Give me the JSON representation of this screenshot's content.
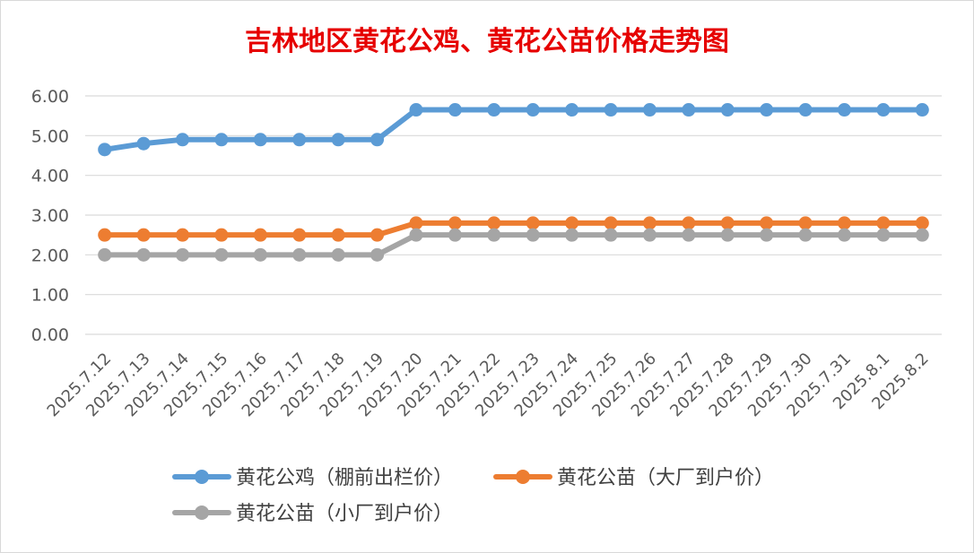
{
  "chart_data": {
    "type": "line",
    "title": "吉林地区黄花公鸡、黄花公苗价格走势图",
    "xlabel": "",
    "ylabel": "",
    "ylim": [
      0,
      6
    ],
    "yticks": [
      "0.00",
      "1.00",
      "2.00",
      "3.00",
      "4.00",
      "5.00",
      "6.00"
    ],
    "grid": true,
    "legend_position": "bottom",
    "categories": [
      "2025.7.12",
      "2025.7.13",
      "2025.7.14",
      "2025.7.15",
      "2025.7.16",
      "2025.7.17",
      "2025.7.18",
      "2025.7.19",
      "2025.7.20",
      "2025.7.21",
      "2025.7.22",
      "2025.7.23",
      "2025.7.24",
      "2025.7.25",
      "2025.7.26",
      "2025.7.27",
      "2025.7.28",
      "2025.7.29",
      "2025.7.30",
      "2025.7.31",
      "2025.8.1",
      "2025.8.2"
    ],
    "series": [
      {
        "name": "黄花公鸡（棚前出栏价）",
        "color": "#5b9bd5",
        "values": [
          4.65,
          4.8,
          4.9,
          4.9,
          4.9,
          4.9,
          4.9,
          4.9,
          5.65,
          5.65,
          5.65,
          5.65,
          5.65,
          5.65,
          5.65,
          5.65,
          5.65,
          5.65,
          5.65,
          5.65,
          5.65,
          5.65
        ]
      },
      {
        "name": "黄花公苗（大厂到户价）",
        "color": "#ed7d31",
        "values": [
          2.5,
          2.5,
          2.5,
          2.5,
          2.5,
          2.5,
          2.5,
          2.5,
          2.8,
          2.8,
          2.8,
          2.8,
          2.8,
          2.8,
          2.8,
          2.8,
          2.8,
          2.8,
          2.8,
          2.8,
          2.8,
          2.8
        ]
      },
      {
        "name": "黄花公苗（小厂到户价）",
        "color": "#a5a5a5",
        "values": [
          2.0,
          2.0,
          2.0,
          2.0,
          2.0,
          2.0,
          2.0,
          2.0,
          2.5,
          2.5,
          2.5,
          2.5,
          2.5,
          2.5,
          2.5,
          2.5,
          2.5,
          2.5,
          2.5,
          2.5,
          2.5,
          2.5
        ]
      }
    ]
  }
}
